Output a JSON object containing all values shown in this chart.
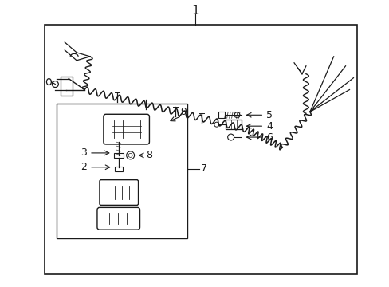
{
  "bg_color": "#ffffff",
  "line_color": "#1a1a1a",
  "fig_width": 4.89,
  "fig_height": 3.6,
  "dpi": 100,
  "title": "1",
  "label_9": "9",
  "label_6": "6",
  "label_4": "4",
  "label_5": "5",
  "label_3": "3",
  "label_2": "2",
  "label_8": "8",
  "label_7": "7"
}
